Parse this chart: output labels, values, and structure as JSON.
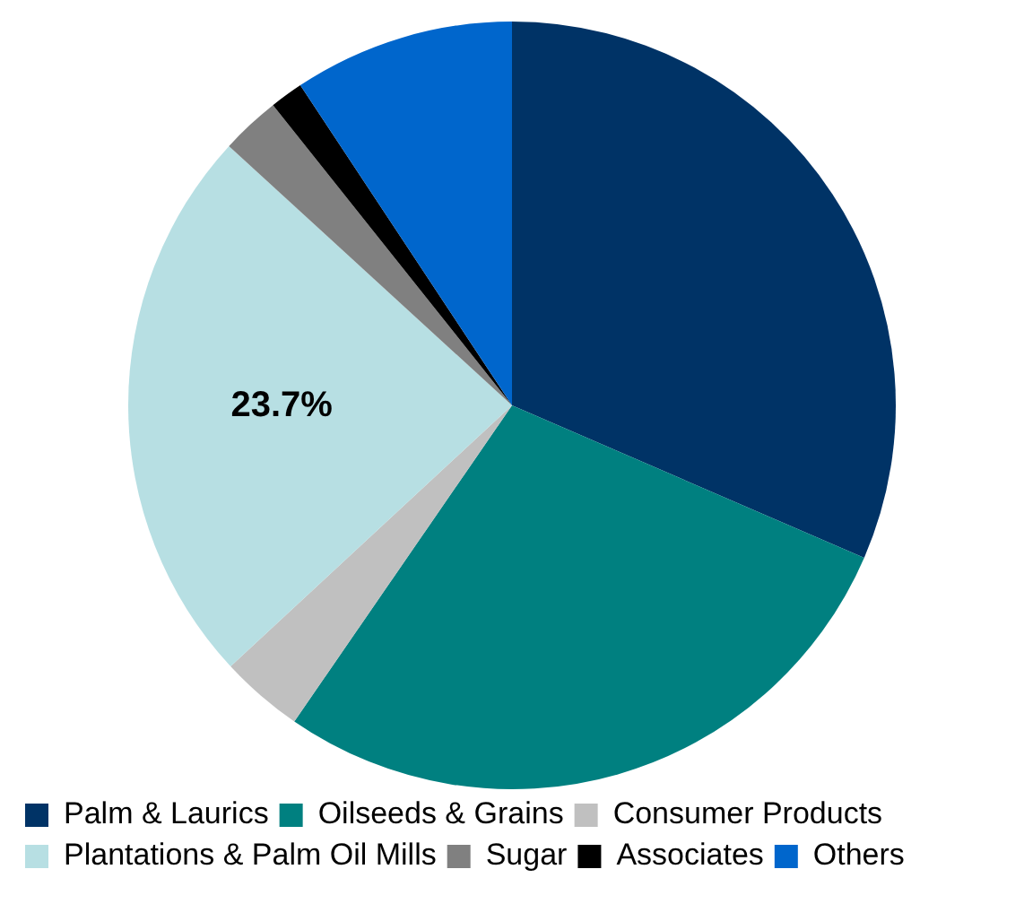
{
  "chart_data": {
    "type": "pie",
    "categories": [
      "Palm & Laurics",
      "Oilseeds & Grains",
      "Consumer Products",
      "Plantations & Palm Oil Mills",
      "Sugar",
      "Associates",
      "Others"
    ],
    "values": [
      31.5,
      28.1,
      3.5,
      23.7,
      2.5,
      1.4,
      9.3
    ],
    "colors": [
      "#003366",
      "#008080",
      "#c0c0c0",
      "#b7dfe3",
      "#808080",
      "#000000",
      "#0066cc"
    ],
    "value_labels": [
      null,
      null,
      null,
      "23.7%",
      null,
      null,
      null
    ],
    "legend": "bottom"
  }
}
